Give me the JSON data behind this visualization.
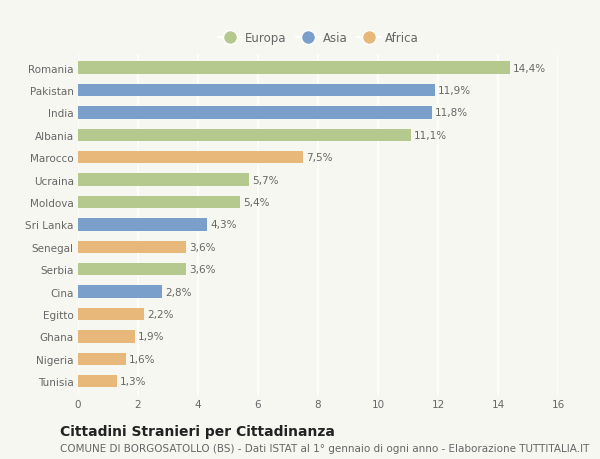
{
  "countries": [
    "Romania",
    "Pakistan",
    "India",
    "Albania",
    "Marocco",
    "Ucraina",
    "Moldova",
    "Sri Lanka",
    "Senegal",
    "Serbia",
    "Cina",
    "Egitto",
    "Ghana",
    "Nigeria",
    "Tunisia"
  ],
  "values": [
    14.4,
    11.9,
    11.8,
    11.1,
    7.5,
    5.7,
    5.4,
    4.3,
    3.6,
    3.6,
    2.8,
    2.2,
    1.9,
    1.6,
    1.3
  ],
  "continents": [
    "Europa",
    "Asia",
    "Asia",
    "Europa",
    "Africa",
    "Europa",
    "Europa",
    "Asia",
    "Africa",
    "Europa",
    "Asia",
    "Africa",
    "Africa",
    "Africa",
    "Africa"
  ],
  "colors": {
    "Europa": "#b5c98e",
    "Asia": "#7a9fcb",
    "Africa": "#e8b87a"
  },
  "legend_labels": [
    "Europa",
    "Asia",
    "Africa"
  ],
  "xlim": [
    0,
    16
  ],
  "xticks": [
    0,
    2,
    4,
    6,
    8,
    10,
    12,
    14,
    16
  ],
  "title": "Cittadini Stranieri per Cittadinanza",
  "subtitle": "COMUNE DI BORGOSATOLLO (BS) - Dati ISTAT al 1° gennaio di ogni anno - Elaborazione TUTTITALIA.IT",
  "bg_color": "#f7f7f2",
  "plot_bg_color": "#f7f7f2",
  "grid_color": "#ffffff",
  "bar_height": 0.55,
  "title_fontsize": 10,
  "subtitle_fontsize": 7.5,
  "label_fontsize": 7.5,
  "tick_fontsize": 7.5,
  "legend_fontsize": 8.5
}
